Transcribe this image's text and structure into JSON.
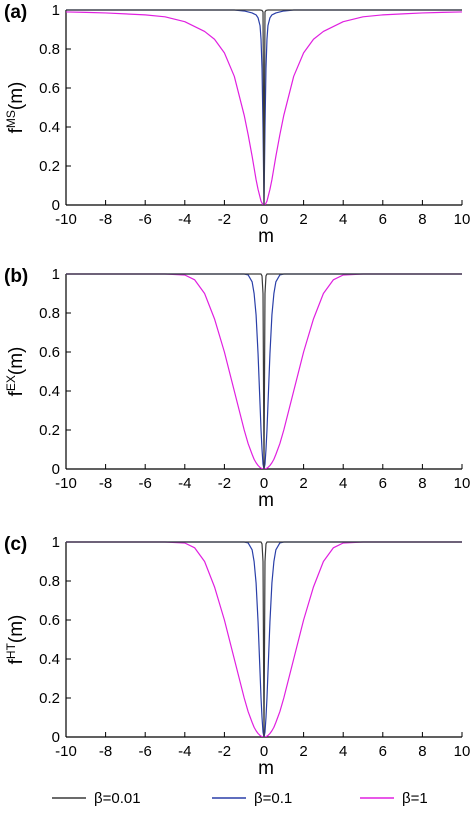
{
  "chart_data": [
    {
      "type": "line",
      "panel_label": "(a)",
      "xlabel": "m",
      "ylabel_base": "f",
      "ylabel_sup": "MS",
      "ylabel_arg": "(m)",
      "xlim": [
        -10,
        10
      ],
      "ylim": [
        0,
        1
      ],
      "xticks": [
        "-10",
        "-8",
        "-6",
        "-4",
        "-2",
        "0",
        "2",
        "4",
        "6",
        "8",
        "10"
      ],
      "yticks": [
        "0",
        "0.2",
        "0.4",
        "0.6",
        "0.8",
        "1"
      ],
      "grid": false,
      "x": [
        -10,
        -9,
        -8,
        -7,
        -6,
        -5,
        -4,
        -3,
        -2.5,
        -2,
        -1.5,
        -1,
        -0.8,
        -0.6,
        -0.5,
        -0.4,
        -0.3,
        -0.2,
        -0.15,
        -0.1,
        -0.05,
        0,
        0.05,
        0.1,
        0.15,
        0.2,
        0.3,
        0.4,
        0.5,
        0.6,
        0.8,
        1,
        1.5,
        2,
        2.5,
        3,
        4,
        5,
        6,
        7,
        8,
        9,
        10
      ],
      "series": [
        {
          "name": "β=0.01",
          "color": "#3a3a3a",
          "values": [
            1,
            1,
            1,
            1,
            1,
            1,
            1,
            1,
            1,
            1,
            1,
            1,
            1,
            1,
            1,
            1,
            1,
            1,
            0.999,
            0.998,
            0.99,
            0,
            0.99,
            0.998,
            0.999,
            1,
            1,
            1,
            1,
            1,
            1,
            1,
            1,
            1,
            1,
            1,
            1,
            1,
            1,
            1,
            1,
            1,
            1
          ]
        },
        {
          "name": "β=0.1",
          "color": "#2a3fa8",
          "values": [
            1,
            1,
            1,
            1,
            1,
            1,
            1,
            1,
            1,
            1,
            1,
            0.995,
            0.99,
            0.985,
            0.98,
            0.975,
            0.96,
            0.92,
            0.85,
            0.7,
            0.4,
            0,
            0.4,
            0.7,
            0.85,
            0.92,
            0.96,
            0.975,
            0.98,
            0.985,
            0.99,
            0.995,
            1,
            1,
            1,
            1,
            1,
            1,
            1,
            1,
            1,
            1,
            1
          ]
        },
        {
          "name": "β=1",
          "color": "#e020e0",
          "values": [
            0.99,
            0.988,
            0.985,
            0.98,
            0.975,
            0.965,
            0.94,
            0.89,
            0.85,
            0.78,
            0.66,
            0.46,
            0.36,
            0.25,
            0.19,
            0.13,
            0.08,
            0.04,
            0.02,
            0.01,
            0.002,
            0,
            0.002,
            0.01,
            0.02,
            0.04,
            0.08,
            0.13,
            0.19,
            0.25,
            0.36,
            0.46,
            0.66,
            0.78,
            0.85,
            0.89,
            0.94,
            0.965,
            0.975,
            0.98,
            0.985,
            0.988,
            0.99
          ]
        }
      ]
    },
    {
      "type": "line",
      "panel_label": "(b)",
      "xlabel": "m",
      "ylabel_base": "f",
      "ylabel_sup": "EX",
      "ylabel_arg": "(m)",
      "xlim": [
        -10,
        10
      ],
      "ylim": [
        0,
        1
      ],
      "xticks": [
        "-10",
        "-8",
        "-6",
        "-4",
        "-2",
        "0",
        "2",
        "4",
        "6",
        "8",
        "10"
      ],
      "yticks": [
        "0",
        "0.2",
        "0.4",
        "0.6",
        "0.8",
        "1"
      ],
      "grid": false,
      "x": [
        -10,
        -9,
        -8,
        -7,
        -6,
        -5,
        -4,
        -3.5,
        -3,
        -2.5,
        -2,
        -1.5,
        -1,
        -0.8,
        -0.6,
        -0.5,
        -0.4,
        -0.3,
        -0.2,
        -0.15,
        -0.1,
        -0.05,
        0,
        0.05,
        0.1,
        0.15,
        0.2,
        0.3,
        0.4,
        0.5,
        0.6,
        0.8,
        1,
        1.5,
        2,
        2.5,
        3,
        3.5,
        4,
        5,
        6,
        7,
        8,
        9,
        10
      ],
      "series": [
        {
          "name": "β=0.01",
          "color": "#3a3a3a",
          "values": [
            1,
            1,
            1,
            1,
            1,
            1,
            1,
            1,
            1,
            1,
            1,
            1,
            1,
            1,
            1,
            1,
            1,
            1,
            1,
            1,
            0.99,
            0.9,
            0,
            0.9,
            0.99,
            1,
            1,
            1,
            1,
            1,
            1,
            1,
            1,
            1,
            1,
            1,
            1,
            1,
            1,
            1,
            1,
            1,
            1,
            1,
            1
          ]
        },
        {
          "name": "β=0.1",
          "color": "#2a3fa8",
          "values": [
            1,
            1,
            1,
            1,
            1,
            1,
            1,
            1,
            1,
            1,
            1,
            1,
            1,
            0.995,
            0.96,
            0.9,
            0.79,
            0.59,
            0.33,
            0.2,
            0.1,
            0.025,
            0,
            0.025,
            0.1,
            0.2,
            0.33,
            0.59,
            0.79,
            0.9,
            0.96,
            0.995,
            1,
            1,
            1,
            1,
            1,
            1,
            1,
            1,
            1,
            1,
            1,
            1,
            1
          ]
        },
        {
          "name": "β=1",
          "color": "#e020e0",
          "values": [
            1,
            1,
            1,
            1,
            1,
            1,
            0.995,
            0.97,
            0.9,
            0.77,
            0.6,
            0.4,
            0.2,
            0.13,
            0.075,
            0.05,
            0.032,
            0.018,
            0.008,
            0.004,
            0.002,
            0.0005,
            0,
            0.0005,
            0.002,
            0.004,
            0.008,
            0.018,
            0.032,
            0.05,
            0.075,
            0.13,
            0.2,
            0.4,
            0.6,
            0.77,
            0.9,
            0.97,
            0.995,
            1,
            1,
            1,
            1,
            1,
            1
          ]
        }
      ]
    },
    {
      "type": "line",
      "panel_label": "(c)",
      "xlabel": "m",
      "ylabel_base": "f",
      "ylabel_sup": "HT",
      "ylabel_arg": "(m)",
      "xlim": [
        -10,
        10
      ],
      "ylim": [
        0,
        1
      ],
      "xticks": [
        "-10",
        "-8",
        "-6",
        "-4",
        "-2",
        "0",
        "2",
        "4",
        "6",
        "8",
        "10"
      ],
      "yticks": [
        "0",
        "0.2",
        "0.4",
        "0.6",
        "0.8",
        "1"
      ],
      "grid": false,
      "x": [
        -10,
        -9,
        -8,
        -7,
        -6,
        -5,
        -4,
        -3.5,
        -3,
        -2.5,
        -2,
        -1.5,
        -1,
        -0.8,
        -0.6,
        -0.5,
        -0.4,
        -0.3,
        -0.2,
        -0.15,
        -0.1,
        -0.05,
        0,
        0.05,
        0.1,
        0.15,
        0.2,
        0.3,
        0.4,
        0.5,
        0.6,
        0.8,
        1,
        1.5,
        2,
        2.5,
        3,
        3.5,
        4,
        5,
        6,
        7,
        8,
        9,
        10
      ],
      "series": [
        {
          "name": "β=0.01",
          "color": "#3a3a3a",
          "values": [
            1,
            1,
            1,
            1,
            1,
            1,
            1,
            1,
            1,
            1,
            1,
            1,
            1,
            1,
            1,
            1,
            1,
            1,
            1,
            1,
            0.99,
            0.9,
            0,
            0.9,
            0.99,
            1,
            1,
            1,
            1,
            1,
            1,
            1,
            1,
            1,
            1,
            1,
            1,
            1,
            1,
            1,
            1,
            1,
            1,
            1,
            1
          ]
        },
        {
          "name": "β=0.1",
          "color": "#2a3fa8",
          "values": [
            1,
            1,
            1,
            1,
            1,
            1,
            1,
            1,
            1,
            1,
            1,
            1,
            1,
            0.995,
            0.96,
            0.9,
            0.79,
            0.59,
            0.33,
            0.2,
            0.1,
            0.025,
            0,
            0.025,
            0.1,
            0.2,
            0.33,
            0.59,
            0.79,
            0.9,
            0.96,
            0.995,
            1,
            1,
            1,
            1,
            1,
            1,
            1,
            1,
            1,
            1,
            1,
            1,
            1
          ]
        },
        {
          "name": "β=1",
          "color": "#e020e0",
          "values": [
            1,
            1,
            1,
            1,
            1,
            1,
            0.995,
            0.97,
            0.9,
            0.77,
            0.6,
            0.4,
            0.2,
            0.13,
            0.075,
            0.05,
            0.032,
            0.018,
            0.008,
            0.004,
            0.002,
            0.0005,
            0,
            0.0005,
            0.002,
            0.004,
            0.008,
            0.018,
            0.032,
            0.05,
            0.075,
            0.13,
            0.2,
            0.4,
            0.6,
            0.77,
            0.9,
            0.97,
            0.995,
            1,
            1,
            1,
            1,
            1,
            1
          ]
        }
      ]
    }
  ],
  "legend": {
    "placement": "bottom",
    "items": [
      {
        "label": "β=0.01",
        "color": "#3a3a3a"
      },
      {
        "label": "β=0.1",
        "color": "#2a3fa8"
      },
      {
        "label": "β=1",
        "color": "#e020e0"
      }
    ]
  }
}
